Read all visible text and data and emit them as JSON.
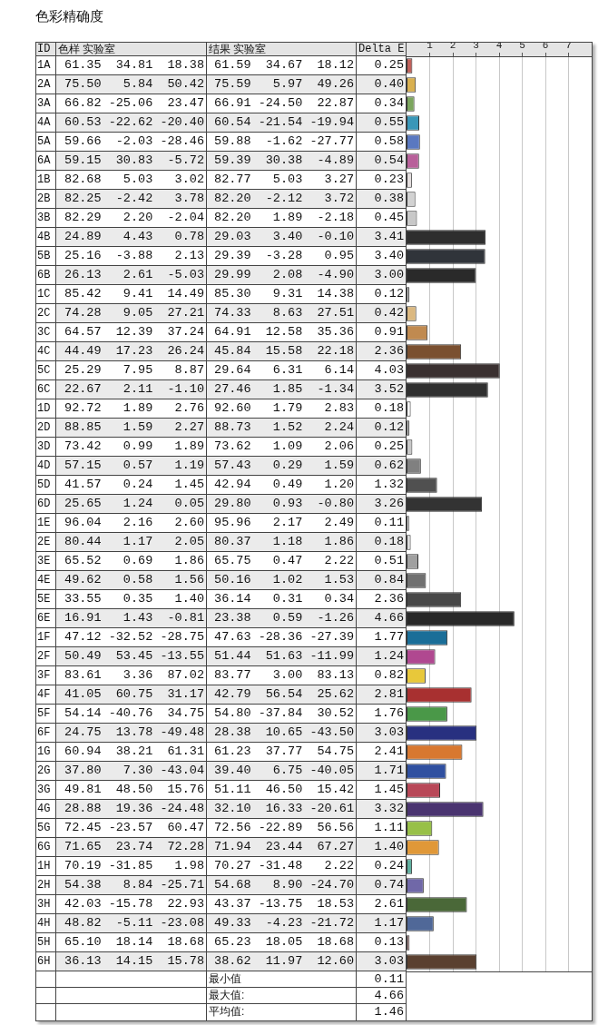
{
  "chart_data": {
    "type": "bar",
    "orientation": "horizontal",
    "title": "色彩精确度",
    "ylabel": "ID",
    "xlabel": "Delta E",
    "categories": [
      "1A",
      "2A",
      "3A",
      "4A",
      "5A",
      "6A",
      "1B",
      "2B",
      "3B",
      "4B",
      "5B",
      "6B",
      "1C",
      "2C",
      "3C",
      "4C",
      "5C",
      "6C",
      "1D",
      "2D",
      "3D",
      "4D",
      "5D",
      "6D",
      "1E",
      "2E",
      "3E",
      "4E",
      "5E",
      "6E",
      "1F",
      "2F",
      "3F",
      "4F",
      "5F",
      "6F",
      "1G",
      "2G",
      "3G",
      "4G",
      "5G",
      "6G",
      "1H",
      "2H",
      "3H",
      "4H",
      "5H",
      "6H"
    ],
    "values": [
      0.25,
      0.4,
      0.34,
      0.55,
      0.58,
      0.54,
      0.23,
      0.38,
      0.45,
      3.41,
      3.4,
      3.0,
      0.12,
      0.42,
      0.91,
      2.36,
      4.03,
      3.52,
      0.18,
      0.12,
      0.25,
      0.62,
      1.32,
      3.26,
      0.11,
      0.18,
      0.51,
      0.84,
      2.36,
      4.66,
      1.77,
      1.24,
      0.82,
      2.81,
      1.76,
      3.03,
      2.41,
      1.71,
      1.45,
      3.32,
      1.11,
      1.4,
      0.24,
      0.74,
      2.61,
      1.17,
      0.13,
      3.03
    ],
    "value_labels": [
      "0.25",
      "0.40",
      "0.34",
      "0.55",
      "0.58",
      "0.54",
      "0.23",
      "0.38",
      "0.45",
      "3.41",
      "3.40",
      "3.00",
      "0.12",
      "0.42",
      "0.91",
      "2.36",
      "4.03",
      "3.52",
      "0.18",
      "0.12",
      "0.25",
      "0.62",
      "1.32",
      "3.26",
      "0.11",
      "0.18",
      "0.51",
      "0.84",
      "2.36",
      "4.66",
      "1.77",
      "1.24",
      "0.82",
      "2.81",
      "1.76",
      "3.03",
      "2.41",
      "1.71",
      "1.45",
      "3.32",
      "1.11",
      "1.40",
      "0.24",
      "0.74",
      "2.61",
      "1.17",
      "0.13",
      "3.03"
    ],
    "colors": [
      "#c0605a",
      "#d9b050",
      "#7ca65e",
      "#3a97b8",
      "#5a78c0",
      "#b8609a",
      "#e4dede",
      "#d2d2d2",
      "#c8c8c8",
      "#2e2e2e",
      "#30343a",
      "#2a2a2a",
      "#e8e8e8",
      "#dbb880",
      "#c08a50",
      "#7a5030",
      "#3a3030",
      "#303030",
      "#f4f4f4",
      "#e4e4e4",
      "#c8c8c8",
      "#808080",
      "#505050",
      "#333333",
      "#f4f4f4",
      "#dcdcdc",
      "#a0a0a0",
      "#707070",
      "#484848",
      "#282828",
      "#1a6e98",
      "#b04890",
      "#e8c83a",
      "#a83030",
      "#4a9848",
      "#283080",
      "#d87830",
      "#3050a0",
      "#b84858",
      "#4a3470",
      "#98c048",
      "#e09838",
      "#60b0a0",
      "#7068a8",
      "#4a6838",
      "#506898",
      "#b09090",
      "#5a4030"
    ],
    "x2lim": [
      0,
      8
    ],
    "x2ticks": [
      1,
      2,
      3,
      4,
      5,
      6,
      7
    ],
    "grid": "x",
    "annotations": [
      "色样 实验室",
      "结果 实验室",
      "61.35  34.81  18.38",
      "61.59  34.67  18.12",
      "75.50   5.84  50.42",
      "75.59   5.97  49.26",
      "66.82 -25.06  23.47",
      "66.91 -24.50  22.87",
      "60.53 -22.62 -20.40",
      "60.54 -21.54 -19.94",
      "59.66  -2.03 -28.46",
      "59.88  -1.62 -27.77",
      "59.15  30.83  -5.72",
      "59.39  30.38  -4.89",
      "82.68   5.03   3.02",
      "82.77   5.03   3.27",
      "82.25  -2.42   3.78",
      "82.20  -2.12   3.72",
      "82.29   2.20  -2.04",
      "82.20   1.89  -2.18",
      "24.89   4.43   0.78",
      "29.03   3.40  -0.10",
      "25.16  -3.88   2.13",
      "29.39  -3.28   0.95",
      "26.13   2.61  -5.03",
      "29.99   2.08  -4.90",
      "85.42   9.41  14.49",
      "85.30   9.31  14.38",
      "74.28   9.05  27.21",
      "74.33   8.63  27.51",
      "64.57  12.39  37.24",
      "64.91  12.58  35.36",
      "44.49  17.23  26.24",
      "45.84  15.58  22.18",
      "25.29   7.95   8.87",
      "29.64   6.31   6.14",
      "22.67   2.11  -1.10",
      "27.46   1.85  -1.34",
      "92.72   1.89   2.76",
      "92.60   1.79   2.83",
      "88.85   1.59   2.27",
      "88.73   1.52   2.24",
      "73.42   0.99   1.89",
      "73.62   1.09   2.06",
      "57.15   0.57   1.19",
      "57.43   0.29   1.59",
      "41.57   0.24   1.45",
      "42.94   0.49   1.20",
      "25.65   1.24   0.05",
      "29.80   0.93  -0.80",
      "96.04   2.16   2.60",
      "95.96   2.17   2.49",
      "80.44   1.17   2.05",
      "80.37   1.18   1.86",
      "65.52   0.69   1.86",
      "65.75   0.47   2.22",
      "49.62   0.58   1.56",
      "50.16   1.02   1.53",
      "33.55   0.35   1.40",
      "36.14   0.31   0.34",
      "16.91   1.43  -0.81",
      "23.38   0.59  -1.26",
      "47.12 -32.52 -28.75",
      "47.63 -28.36 -27.39",
      "50.49  53.45 -13.55",
      "51.44  51.63 -11.99",
      "83.61   3.36  87.02",
      "83.77   3.00  83.13",
      "41.05  60.75  31.17",
      "42.79  56.54  25.62",
      "54.14 -40.76  34.75",
      "54.80 -37.84  30.52",
      "24.75  13.78 -49.48",
      "28.38  10.65 -43.50",
      "60.94  38.21  61.31",
      "61.23  37.77  54.75",
      "37.80   7.30 -43.04",
      "39.40   6.75 -40.05",
      "49.81  48.50  15.76",
      "51.11  46.50  15.42",
      "28.88  19.36 -24.48",
      "32.10  16.33 -20.61",
      "72.45 -23.57  60.47",
      "72.56 -22.89  56.56",
      "71.65  23.74  72.28",
      "71.94  23.44  67.27",
      "70.19 -31.85   1.98",
      "70.27 -31.48   2.22",
      "54.38   8.84 -25.71",
      "54.68   8.90 -24.70",
      "42.03 -15.78  22.93",
      "43.37 -13.75  18.53",
      "48.82  -5.11 -23.08",
      "49.33  -4.23 -21.72",
      "65.10  18.14  18.68",
      "65.23  18.05  18.68",
      "36.13  14.15  15.78",
      "38.62  11.97  12.60",
      "最小值",
      "0.11",
      "最大值:",
      "4.66",
      "平均值:",
      "1.46"
    ]
  }
}
